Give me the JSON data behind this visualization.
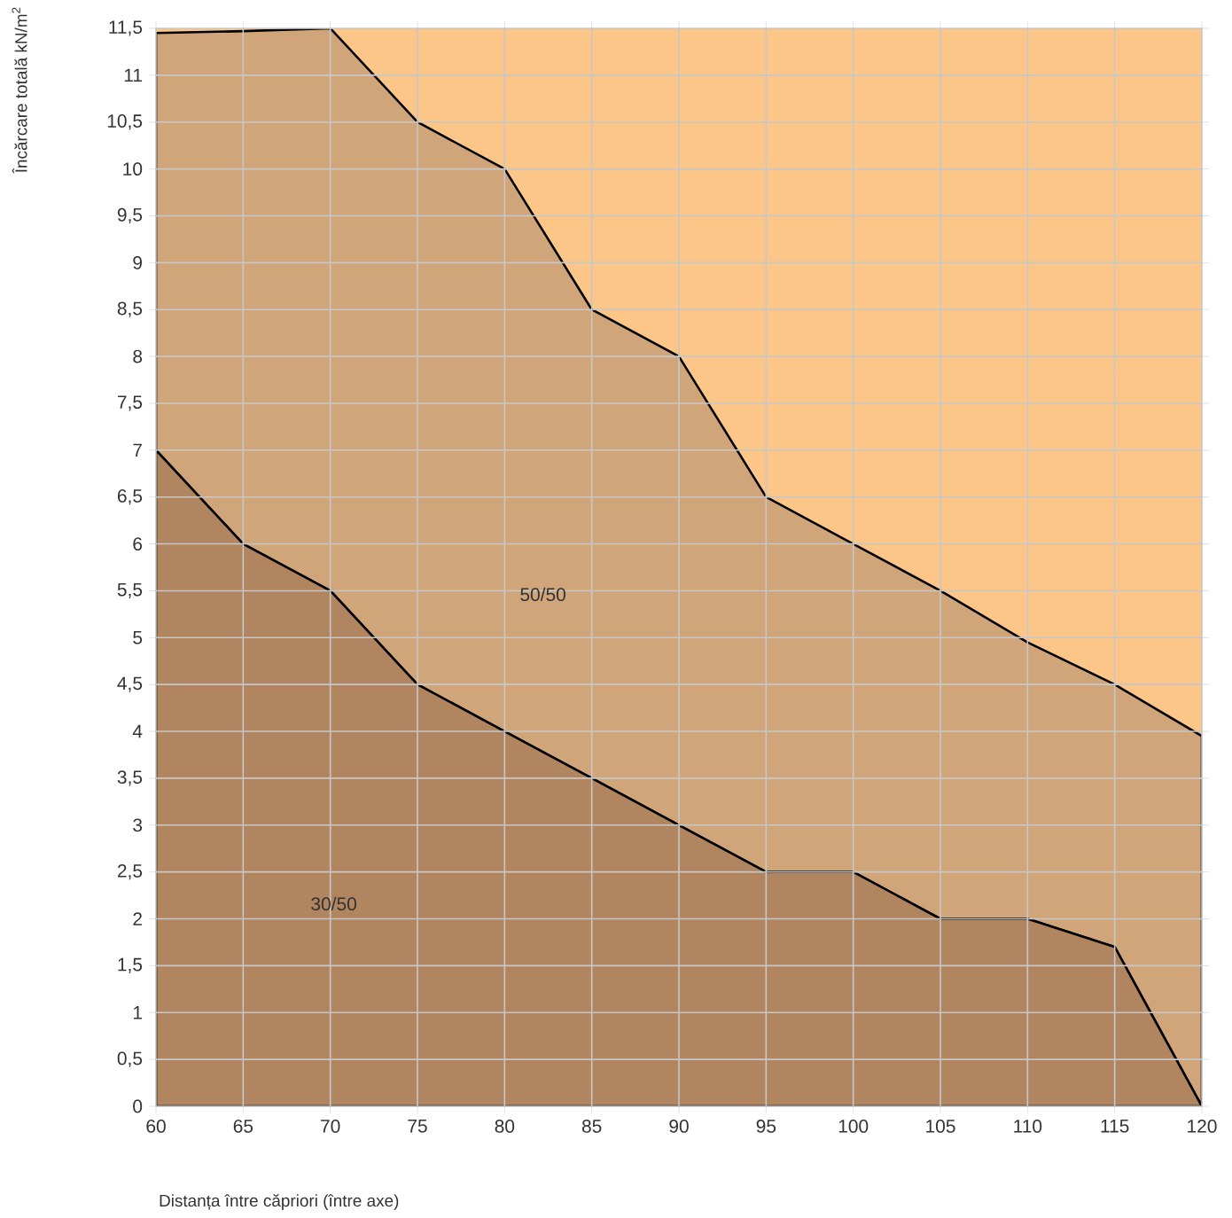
{
  "chart_data": {
    "type": "area",
    "stacked": true,
    "xlabel": "Distanța între căpriori (între axe)",
    "ylabel": "Încărcare totală kN/m$^{2}$",
    "x": [
      60,
      65,
      70,
      75,
      80,
      85,
      90,
      95,
      100,
      105,
      110,
      115,
      120
    ],
    "series": [
      {
        "color": "#b08560",
        "line_style": "solid",
        "values": [
          7,
          6,
          5.5,
          4.5,
          4,
          3.5,
          3,
          2.5,
          2.5,
          2,
          2,
          1.7,
          0
        ]
      },
      {
        "color": "#d1a57a",
        "line_style": "solid",
        "values": [
          4.45,
          5.47,
          6,
          6,
          6,
          5,
          5,
          4,
          3.5,
          3.5,
          2.95,
          2.8,
          3.95
        ]
      },
      {
        "color": "#fbc687",
        "values": [
          0.05,
          0.03,
          0,
          1,
          1.5,
          3,
          3.5,
          5,
          5.5,
          6,
          6.55,
          7,
          7.55
        ]
      }
    ],
    "annotations": [
      "50/50",
      "30/50"
    ],
    "xlim": [
      60,
      120
    ],
    "ylim": [
      0,
      11.5
    ],
    "xticks": [
      60,
      65,
      70,
      75,
      80,
      85,
      90,
      95,
      100,
      105,
      110,
      115,
      120
    ],
    "yticks": [
      0,
      {
        "value": 0.5,
        "label": "0,5"
      },
      1,
      {
        "value": 1.5,
        "label": "1,5"
      },
      2,
      {
        "value": 2.5,
        "label": "2,5"
      },
      3,
      {
        "value": 3.5,
        "label": "3,5"
      },
      4,
      {
        "value": 4.5,
        "label": "4,5"
      },
      5,
      {
        "value": 5.5,
        "label": "5,5"
      },
      6,
      {
        "value": 6.5,
        "label": "6,5"
      },
      7,
      {
        "value": 7.5,
        "label": "7,5"
      },
      8,
      {
        "value": 8.5,
        "label": "8,5"
      },
      9,
      {
        "value": 9.5,
        "label": "9,5"
      },
      10,
      {
        "value": 10.5,
        "label": "10,5"
      },
      11,
      {
        "value": 11.5,
        "label": "11,5"
      }
    ],
    "grid": true
  }
}
